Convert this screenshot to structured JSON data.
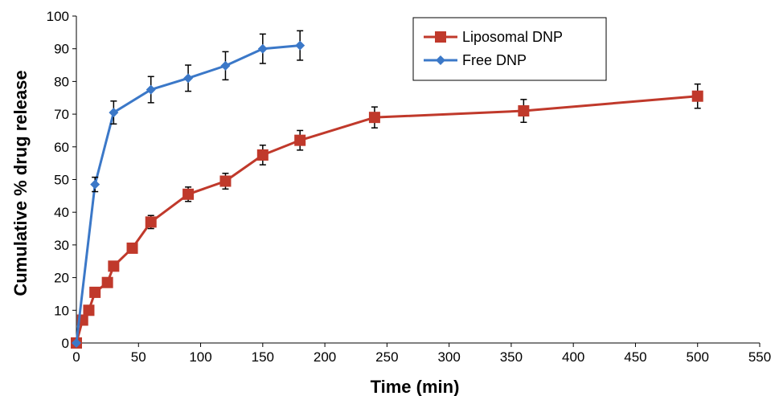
{
  "chart_data": {
    "type": "line",
    "title": "",
    "xlabel": "Time (min)",
    "ylabel": "Cumulative % drug release",
    "xlim": [
      0,
      550
    ],
    "ylim": [
      0,
      100
    ],
    "x_ticks": [
      "0",
      "50",
      "100",
      "150",
      "200",
      "250",
      "300",
      "350",
      "400",
      "450",
      "500",
      "550"
    ],
    "y_ticks": [
      "0",
      "10",
      "20",
      "30",
      "40",
      "50",
      "60",
      "70",
      "80",
      "90",
      "100"
    ],
    "grid": false,
    "legend_position": "top-right",
    "series": [
      {
        "name": "Liposomal DNP",
        "color": "#c0392b",
        "marker": "square",
        "x": [
          0,
          5,
          10,
          15,
          25,
          30,
          45,
          60,
          90,
          120,
          150,
          180,
          240,
          360,
          500
        ],
        "y": [
          0,
          7,
          10,
          15.5,
          18.5,
          23.5,
          29,
          37,
          45.5,
          49.5,
          57.5,
          62,
          69,
          71,
          75.5
        ],
        "err": [
          0,
          0,
          0,
          0,
          0,
          0,
          0,
          2,
          2.2,
          2.4,
          3,
          3,
          3.2,
          3.5,
          3.7
        ]
      },
      {
        "name": "Free DNP",
        "color": "#3b78c8",
        "marker": "diamond",
        "x": [
          0,
          15,
          30,
          60,
          90,
          120,
          150,
          180
        ],
        "y": [
          0,
          48.5,
          70.5,
          77.5,
          81,
          84.8,
          90,
          91
        ],
        "err": [
          0,
          2.2,
          3.5,
          4,
          4,
          4.3,
          4.5,
          4.5
        ]
      }
    ]
  }
}
